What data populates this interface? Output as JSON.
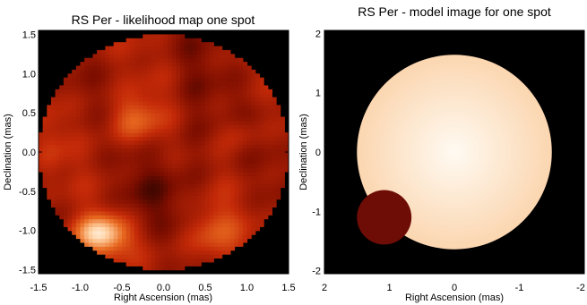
{
  "chart_data": [
    {
      "type": "heatmap",
      "title": "RS Per - likelihood map one spot",
      "xlabel": "Right Ascension (mas)",
      "ylabel": "Declination (mas)",
      "xlim": [
        -1.5,
        1.5
      ],
      "ylim": [
        -1.55,
        1.55
      ],
      "xticks": [
        "-1.5",
        "-1.0",
        "-0.5",
        "0.0",
        "0.5",
        "1.0",
        "1.5"
      ],
      "yticks": [
        "-1.5",
        "-1.0",
        "-0.5",
        "0.0",
        "0.5",
        "1.0",
        "1.5"
      ],
      "colormap": [
        "#000000",
        "#7a0d00",
        "#c42a08",
        "#e86a20",
        "#ffd0a0",
        "#ffffff"
      ],
      "disk_radius_mas": 1.5,
      "grid": false
    },
    {
      "type": "heatmap",
      "title": "RS Per - model image for one spot",
      "xlabel": "Right Ascension (mas)",
      "ylabel": "Declination (mas)",
      "xlim": [
        2,
        -2
      ],
      "ylim": [
        -2.05,
        2.05
      ],
      "xticks": [
        "2",
        "1",
        "0",
        "-1",
        "-2"
      ],
      "yticks": [
        "-2",
        "-1",
        "0",
        "1",
        "2"
      ],
      "star": {
        "center": [
          0,
          0
        ],
        "radius_mas": 1.5,
        "color_center": "#fffaf2",
        "color_edge": "#fbd6b0"
      },
      "spot": {
        "center": [
          1.08,
          -1.1
        ],
        "radius_mas": 0.42,
        "color": "#6e0c06"
      },
      "background": "#000000",
      "grid": false
    }
  ]
}
